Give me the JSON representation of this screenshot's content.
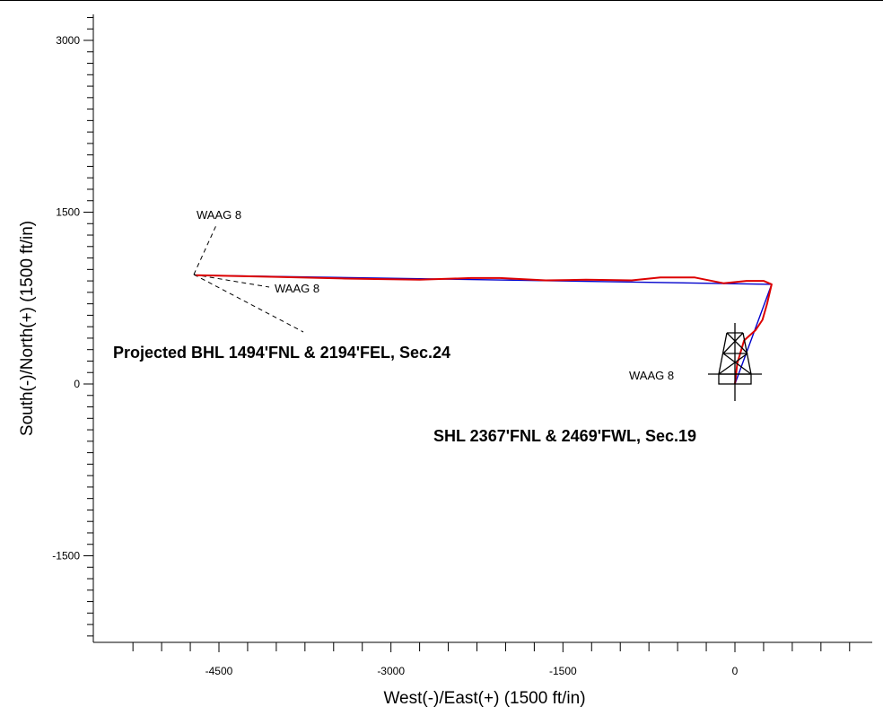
{
  "chart_data": {
    "type": "line",
    "title": "",
    "xlabel": "West(-)/East(+) (1500 ft/in)",
    "ylabel": "South(-)/North(+) (1500 ft/in)",
    "xlim": [
      -5250,
      1200
    ],
    "ylim": [
      -2250,
      3200
    ],
    "x_tick_labels": [
      -4500,
      -3000,
      -1500,
      0
    ],
    "y_tick_labels": [
      3000,
      1500,
      0,
      -1500
    ],
    "x_minor_step": 250,
    "y_minor_step": 100,
    "grid": false,
    "series": [
      {
        "color": "#0000cc",
        "points": [
          [
            0,
            0
          ],
          [
            320,
            870
          ],
          [
            -4700,
            950
          ]
        ]
      },
      {
        "color": "#dd0000",
        "points": [
          [
            0,
            0
          ],
          [
            20,
            180
          ],
          [
            80,
            380
          ],
          [
            180,
            470
          ],
          [
            240,
            560
          ],
          [
            280,
            700
          ],
          [
            320,
            870
          ],
          [
            250,
            900
          ],
          [
            100,
            900
          ],
          [
            -100,
            880
          ],
          [
            -350,
            930
          ],
          [
            -650,
            930
          ],
          [
            -900,
            905
          ],
          [
            -1300,
            910
          ],
          [
            -1650,
            905
          ],
          [
            -2050,
            925
          ],
          [
            -2300,
            925
          ],
          [
            -2750,
            910
          ],
          [
            -3400,
            920
          ],
          [
            -4000,
            935
          ],
          [
            -4700,
            950
          ]
        ]
      }
    ],
    "annotations": [
      {
        "text": "WAAG 8",
        "id": "waag8-upper"
      },
      {
        "text": "WAAG 8",
        "id": "waag8-mid"
      },
      {
        "text": "Projected BHL 1494'FNL & 2194'FEL, Sec.24",
        "id": "bhl"
      },
      {
        "text": "WAAG 8",
        "id": "waag8-rig"
      },
      {
        "text": "SHL 2367'FNL & 2469'FWL, Sec.19",
        "id": "shl"
      }
    ]
  }
}
